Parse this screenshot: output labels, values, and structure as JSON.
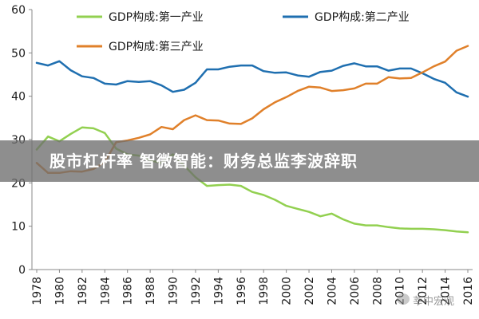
{
  "headline": "股市杠杆率 智微智能：财务总监李波辞职",
  "watermark": "莘中宏观",
  "chart_data": {
    "type": "line",
    "ylim": [
      0,
      60
    ],
    "yticks": [
      0,
      10,
      20,
      30,
      40,
      50,
      60
    ],
    "xlim": [
      1978,
      2016
    ],
    "xticks": [
      1978,
      1980,
      1982,
      1984,
      1986,
      1988,
      1990,
      1992,
      1994,
      1996,
      1998,
      2000,
      2002,
      2004,
      2006,
      2008,
      2010,
      2012,
      2014,
      2016
    ],
    "grid": false,
    "legend_position": "top",
    "series": [
      {
        "name": "GDP构成:第一产业",
        "color": "#92d050",
        "x": [
          1978,
          1979,
          1980,
          1981,
          1982,
          1983,
          1984,
          1985,
          1986,
          1987,
          1988,
          1989,
          1990,
          1991,
          1992,
          1993,
          1994,
          1995,
          1996,
          1997,
          1998,
          1999,
          2000,
          2001,
          2002,
          2003,
          2004,
          2005,
          2006,
          2007,
          2008,
          2009,
          2010,
          2011,
          2012,
          2013,
          2014,
          2015,
          2016
        ],
        "y": [
          27.7,
          30.7,
          29.6,
          31.3,
          32.8,
          32.6,
          31.5,
          27.9,
          26.6,
          26.3,
          25.2,
          24.6,
          26.6,
          24.0,
          21.3,
          19.3,
          19.5,
          19.6,
          19.3,
          17.9,
          17.2,
          16.1,
          14.7,
          14.0,
          13.3,
          12.3,
          12.9,
          11.6,
          10.6,
          10.2,
          10.2,
          9.8,
          9.5,
          9.4,
          9.4,
          9.3,
          9.1,
          8.8,
          8.6
        ]
      },
      {
        "name": "GDP构成:第二产业",
        "color": "#1f6fb0",
        "x": [
          1978,
          1979,
          1980,
          1981,
          1982,
          1983,
          1984,
          1985,
          1986,
          1987,
          1988,
          1989,
          1990,
          1991,
          1992,
          1993,
          1994,
          1995,
          1996,
          1997,
          1998,
          1999,
          2000,
          2001,
          2002,
          2003,
          2004,
          2005,
          2006,
          2007,
          2008,
          2009,
          2010,
          2011,
          2012,
          2013,
          2014,
          2015,
          2016
        ],
        "y": [
          47.7,
          47.1,
          48.1,
          46.0,
          44.6,
          44.2,
          42.9,
          42.7,
          43.5,
          43.3,
          43.5,
          42.5,
          41.0,
          41.5,
          43.1,
          46.2,
          46.2,
          46.8,
          47.1,
          47.1,
          45.8,
          45.4,
          45.5,
          44.8,
          44.5,
          45.6,
          45.9,
          47.0,
          47.6,
          46.9,
          46.9,
          45.9,
          46.4,
          46.4,
          45.3,
          44.0,
          43.1,
          40.9,
          39.9
        ]
      },
      {
        "name": "GDP构成:第三产业",
        "color": "#e0802a",
        "x": [
          1978,
          1979,
          1980,
          1981,
          1982,
          1983,
          1984,
          1985,
          1986,
          1987,
          1988,
          1989,
          1990,
          1991,
          1992,
          1993,
          1994,
          1995,
          1996,
          1997,
          1998,
          1999,
          2000,
          2001,
          2002,
          2003,
          2004,
          2005,
          2006,
          2007,
          2008,
          2009,
          2010,
          2011,
          2012,
          2013,
          2014,
          2015,
          2016
        ],
        "y": [
          24.6,
          22.3,
          22.3,
          22.7,
          22.6,
          23.2,
          24.8,
          29.4,
          29.8,
          30.4,
          31.2,
          32.9,
          32.4,
          34.5,
          35.6,
          34.5,
          34.4,
          33.7,
          33.6,
          34.9,
          37.0,
          38.6,
          39.8,
          41.2,
          42.2,
          42.0,
          41.2,
          41.4,
          41.8,
          42.9,
          42.9,
          44.4,
          44.1,
          44.2,
          45.5,
          46.9,
          48.0,
          50.5,
          51.6
        ]
      }
    ]
  }
}
